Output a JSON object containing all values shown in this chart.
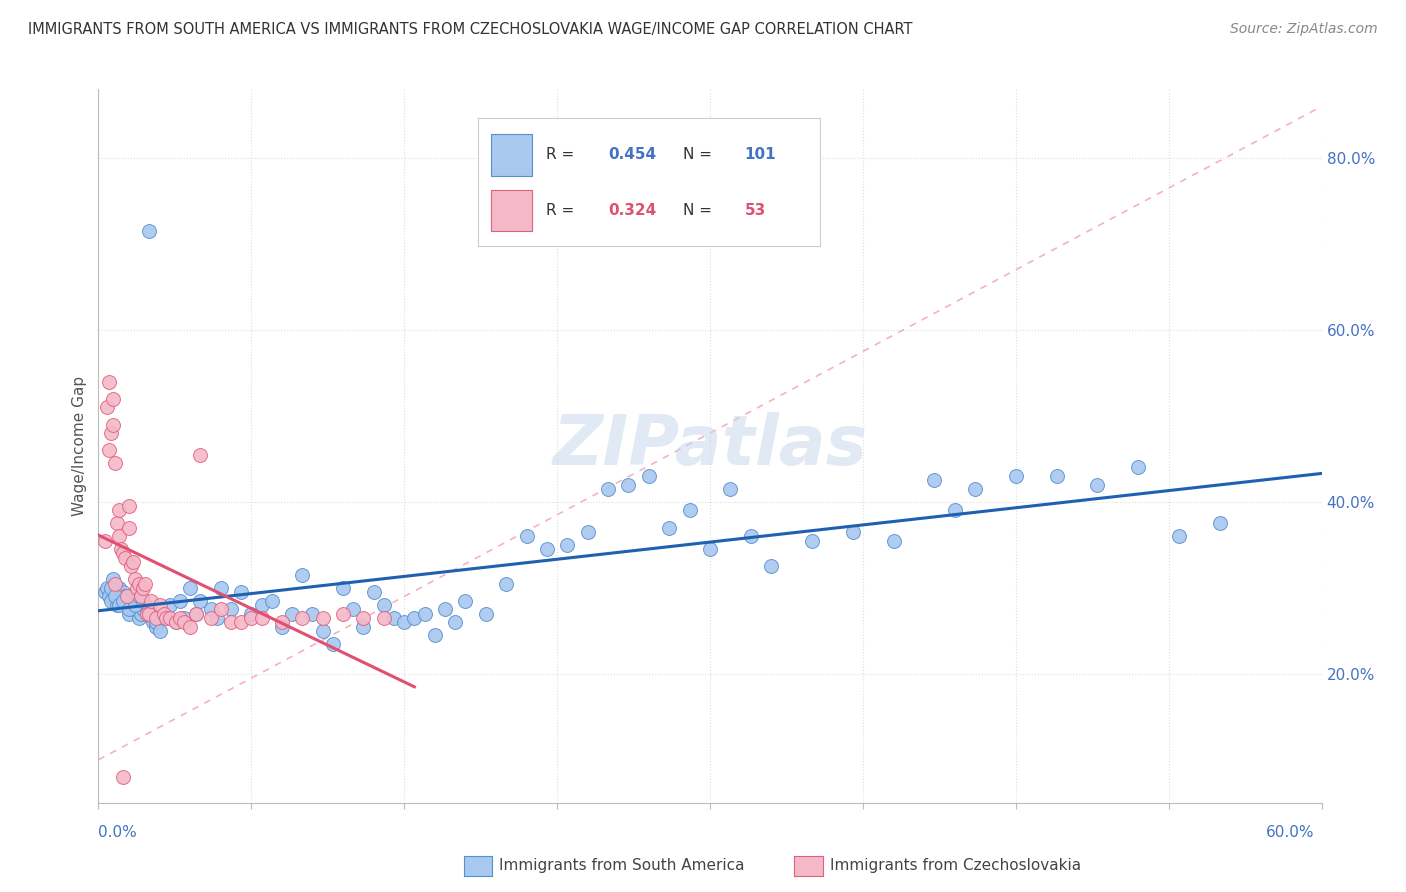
{
  "title": "IMMIGRANTS FROM SOUTH AMERICA VS IMMIGRANTS FROM CZECHOSLOVAKIA WAGE/INCOME GAP CORRELATION CHART",
  "source": "Source: ZipAtlas.com",
  "ylabel": "Wage/Income Gap",
  "yticks": [
    0.2,
    0.4,
    0.6,
    0.8
  ],
  "ytick_labels": [
    "20.0%",
    "40.0%",
    "60.0%",
    "80.0%"
  ],
  "xlim": [
    0.0,
    0.6
  ],
  "ylim": [
    0.05,
    0.88
  ],
  "r_blue": 0.454,
  "n_blue": 101,
  "r_pink": 0.324,
  "n_pink": 53,
  "legend_label_blue": "Immigrants from South America",
  "legend_label_pink": "Immigrants from Czechoslovakia",
  "blue_color": "#A8C8F0",
  "pink_color": "#F5B8C8",
  "blue_edge_color": "#5590D0",
  "pink_edge_color": "#E06080",
  "blue_line_color": "#2060B0",
  "pink_line_color": "#E05070",
  "r_text_blue": "#4472C4",
  "r_text_pink": "#E05070",
  "watermark": "ZIPatlas",
  "blue_scatter_x": [
    0.003,
    0.004,
    0.005,
    0.006,
    0.007,
    0.008,
    0.009,
    0.01,
    0.011,
    0.012,
    0.013,
    0.014,
    0.015,
    0.016,
    0.017,
    0.018,
    0.019,
    0.02,
    0.021,
    0.022,
    0.023,
    0.024,
    0.025,
    0.026,
    0.027,
    0.028,
    0.03,
    0.032,
    0.035,
    0.038,
    0.04,
    0.042,
    0.045,
    0.048,
    0.05,
    0.055,
    0.058,
    0.06,
    0.065,
    0.07,
    0.075,
    0.08,
    0.085,
    0.09,
    0.095,
    0.1,
    0.105,
    0.11,
    0.115,
    0.12,
    0.125,
    0.13,
    0.135,
    0.14,
    0.145,
    0.15,
    0.155,
    0.16,
    0.165,
    0.17,
    0.175,
    0.18,
    0.19,
    0.2,
    0.21,
    0.22,
    0.23,
    0.24,
    0.25,
    0.26,
    0.27,
    0.28,
    0.29,
    0.3,
    0.31,
    0.32,
    0.33,
    0.35,
    0.37,
    0.39,
    0.41,
    0.43,
    0.45,
    0.47,
    0.49,
    0.51,
    0.53,
    0.55,
    0.006,
    0.008,
    0.01,
    0.012,
    0.015,
    0.018,
    0.02,
    0.022,
    0.025,
    0.025,
    0.028,
    0.03,
    0.42
  ],
  "blue_scatter_y": [
    0.295,
    0.3,
    0.29,
    0.285,
    0.31,
    0.295,
    0.28,
    0.3,
    0.285,
    0.295,
    0.29,
    0.285,
    0.27,
    0.28,
    0.275,
    0.285,
    0.275,
    0.265,
    0.27,
    0.275,
    0.28,
    0.27,
    0.275,
    0.265,
    0.26,
    0.255,
    0.265,
    0.27,
    0.28,
    0.26,
    0.285,
    0.265,
    0.3,
    0.27,
    0.285,
    0.275,
    0.265,
    0.3,
    0.275,
    0.295,
    0.27,
    0.28,
    0.285,
    0.255,
    0.27,
    0.315,
    0.27,
    0.25,
    0.235,
    0.3,
    0.275,
    0.255,
    0.295,
    0.28,
    0.265,
    0.26,
    0.265,
    0.27,
    0.245,
    0.275,
    0.26,
    0.285,
    0.27,
    0.305,
    0.36,
    0.345,
    0.35,
    0.365,
    0.415,
    0.42,
    0.43,
    0.37,
    0.39,
    0.345,
    0.415,
    0.36,
    0.325,
    0.355,
    0.365,
    0.355,
    0.425,
    0.415,
    0.43,
    0.43,
    0.42,
    0.44,
    0.36,
    0.375,
    0.3,
    0.29,
    0.28,
    0.285,
    0.275,
    0.28,
    0.29,
    0.285,
    0.275,
    0.715,
    0.26,
    0.25,
    0.39
  ],
  "pink_scatter_x": [
    0.003,
    0.004,
    0.005,
    0.006,
    0.007,
    0.007,
    0.008,
    0.009,
    0.01,
    0.01,
    0.011,
    0.012,
    0.013,
    0.014,
    0.015,
    0.015,
    0.016,
    0.017,
    0.018,
    0.019,
    0.02,
    0.021,
    0.022,
    0.023,
    0.024,
    0.025,
    0.026,
    0.028,
    0.03,
    0.032,
    0.033,
    0.035,
    0.038,
    0.04,
    0.042,
    0.045,
    0.048,
    0.05,
    0.055,
    0.06,
    0.065,
    0.07,
    0.075,
    0.08,
    0.09,
    0.1,
    0.11,
    0.12,
    0.13,
    0.14,
    0.005,
    0.008,
    0.012
  ],
  "pink_scatter_y": [
    0.355,
    0.51,
    0.46,
    0.48,
    0.49,
    0.52,
    0.445,
    0.375,
    0.36,
    0.39,
    0.345,
    0.34,
    0.335,
    0.29,
    0.37,
    0.395,
    0.325,
    0.33,
    0.31,
    0.3,
    0.305,
    0.29,
    0.3,
    0.305,
    0.27,
    0.27,
    0.285,
    0.265,
    0.28,
    0.27,
    0.265,
    0.265,
    0.26,
    0.265,
    0.26,
    0.255,
    0.27,
    0.455,
    0.265,
    0.275,
    0.26,
    0.26,
    0.265,
    0.265,
    0.26,
    0.265,
    0.265,
    0.27,
    0.265,
    0.265,
    0.54,
    0.305,
    0.08
  ]
}
